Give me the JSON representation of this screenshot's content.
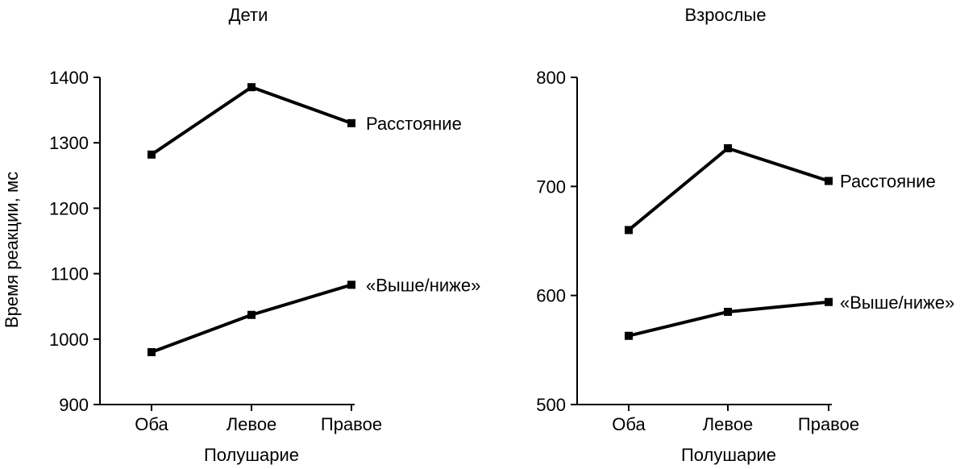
{
  "ylabel": "Время реакции, мс",
  "chart_data": [
    {
      "type": "line",
      "title": "Дети",
      "xlabel": "Полушарие",
      "ylabel": "Время реакции, мс",
      "categories": [
        "Оба",
        "Левое",
        "Правое"
      ],
      "ylim": [
        900,
        1400
      ],
      "yticks": [
        900,
        1000,
        1100,
        1200,
        1300,
        1400
      ],
      "series": [
        {
          "name": "Расстояние",
          "values": [
            1282,
            1385,
            1330
          ]
        },
        {
          "name": "«Выше/ниже»",
          "values": [
            980,
            1037,
            1083
          ]
        }
      ]
    },
    {
      "type": "line",
      "title": "Взрослые",
      "xlabel": "Полушарие",
      "ylabel": "",
      "categories": [
        "Оба",
        "Левое",
        "Правое"
      ],
      "ylim": [
        500,
        800
      ],
      "yticks": [
        500,
        600,
        700,
        800
      ],
      "series": [
        {
          "name": "Расстояние",
          "values": [
            660,
            735,
            705
          ]
        },
        {
          "name": "«Выше/ниже»",
          "values": [
            563,
            585,
            594
          ]
        }
      ]
    }
  ]
}
